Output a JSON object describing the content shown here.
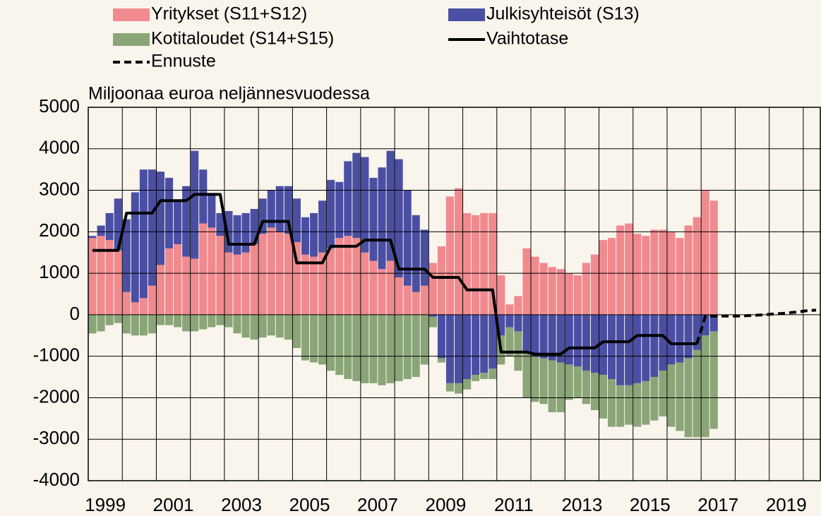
{
  "chart_data": {
    "type": "bar",
    "subtitle": "Miljoonaa euroa neljännesvuodessa",
    "stacked": true,
    "grid": true,
    "categories": [
      "1999",
      null,
      null,
      null,
      null,
      null,
      null,
      null,
      "2001",
      null,
      null,
      null,
      null,
      null,
      null,
      null,
      "2003",
      null,
      null,
      null,
      null,
      null,
      null,
      null,
      "2005",
      null,
      null,
      null,
      null,
      null,
      null,
      null,
      "2007",
      null,
      null,
      null,
      null,
      null,
      null,
      null,
      "2009",
      null,
      null,
      null,
      null,
      null,
      null,
      null,
      "2011",
      null,
      null,
      null,
      null,
      null,
      null,
      null,
      "2013",
      null,
      null,
      null,
      null,
      null,
      null,
      null,
      "2015",
      null,
      null,
      null,
      null,
      null,
      null,
      null,
      "2017",
      null,
      null,
      null,
      null,
      null,
      null,
      null,
      "2019",
      null,
      null,
      null,
      null,
      null
    ],
    "ylim": [
      -4000,
      5000
    ],
    "yticks": [
      -4000,
      -3000,
      -2000,
      -1000,
      0,
      1000,
      2000,
      3000,
      4000,
      5000
    ],
    "series": [
      {
        "name": "Yritykset (S11+S12)",
        "kind": "bar",
        "color": "#f08a8f",
        "values": [
          1850,
          1900,
          1800,
          1550,
          550,
          300,
          400,
          700,
          1200,
          1600,
          1700,
          1400,
          1350,
          2200,
          2100,
          1900,
          1500,
          1450,
          1500,
          1700,
          1950,
          2100,
          2000,
          1950,
          1750,
          1450,
          1400,
          1500,
          1600,
          1850,
          1900,
          1850,
          1500,
          1300,
          1100,
          1300,
          900,
          700,
          550,
          700,
          1250,
          1650,
          2850,
          3050,
          2450,
          2400,
          2450,
          2450,
          950,
          250,
          450,
          1600,
          1400,
          1250,
          1150,
          1100,
          1000,
          950,
          1250,
          1450,
          1800,
          1850,
          2150,
          2200,
          1950,
          1900,
          2050,
          2050,
          2000,
          1850,
          2150,
          2350,
          3000,
          2750,
          null,
          null,
          null,
          null,
          null,
          null,
          null,
          null,
          null,
          null,
          null,
          null
        ]
      },
      {
        "name": "Julkisyhteisöt (S13)",
        "kind": "bar",
        "color": "#4a4fa3",
        "values": [
          50,
          250,
          650,
          1250,
          1750,
          2650,
          3100,
          2800,
          2250,
          1700,
          1050,
          1700,
          2600,
          1300,
          800,
          550,
          1000,
          950,
          950,
          850,
          850,
          900,
          1100,
          1150,
          1050,
          900,
          1050,
          1250,
          1650,
          1350,
          1800,
          2050,
          2300,
          2000,
          2450,
          2650,
          2850,
          2300,
          1850,
          1350,
          -50,
          -1050,
          -1650,
          -1650,
          -1550,
          -1450,
          -1400,
          -1300,
          -500,
          -300,
          -400,
          -900,
          -1000,
          -1050,
          -1100,
          -1150,
          -1200,
          -1250,
          -1350,
          -1400,
          -1450,
          -1550,
          -1700,
          -1700,
          -1650,
          -1600,
          -1500,
          -1350,
          -1200,
          -1150,
          -1050,
          -850,
          -500,
          -400,
          null,
          null,
          null,
          null,
          null,
          null,
          null,
          null,
          null,
          null,
          null,
          null
        ]
      },
      {
        "name": "Kotitaloudet (S14+S15)",
        "kind": "bar",
        "color": "#8aa577",
        "values": [
          -450,
          -400,
          -250,
          -200,
          -450,
          -500,
          -500,
          -450,
          -250,
          -250,
          -300,
          -400,
          -400,
          -350,
          -300,
          -250,
          -300,
          -450,
          -550,
          -600,
          -550,
          -500,
          -550,
          -600,
          -800,
          -1100,
          -1150,
          -1200,
          -1350,
          -1450,
          -1550,
          -1600,
          -1650,
          -1650,
          -1700,
          -1650,
          -1600,
          -1550,
          -1500,
          -1200,
          -250,
          -100,
          -200,
          -250,
          -250,
          -150,
          -150,
          -250,
          -700,
          -700,
          -950,
          -1100,
          -1100,
          -1100,
          -1250,
          -1200,
          -850,
          -750,
          -800,
          -900,
          -1050,
          -1150,
          -1000,
          -950,
          -1050,
          -1050,
          -1050,
          -1100,
          -1500,
          -1650,
          -1900,
          -2100,
          -2450,
          -2350,
          null,
          null,
          null,
          null,
          null,
          null,
          null,
          null,
          null,
          null,
          null,
          null
        ]
      },
      {
        "name": "Vaihtotase",
        "kind": "line",
        "style": "solid",
        "color": "#000000",
        "values": [
          1550,
          1550,
          1550,
          1550,
          2450,
          2450,
          2450,
          2450,
          2750,
          2750,
          2750,
          2750,
          2900,
          2900,
          2900,
          2900,
          1700,
          1700,
          1700,
          1700,
          2250,
          2250,
          2250,
          2250,
          1250,
          1250,
          1250,
          1250,
          1650,
          1650,
          1650,
          1650,
          1800,
          1800,
          1800,
          1800,
          1100,
          1100,
          1100,
          1100,
          900,
          900,
          900,
          900,
          600,
          600,
          600,
          600,
          -900,
          -900,
          -900,
          -900,
          -950,
          -950,
          -950,
          -950,
          -800,
          -800,
          -800,
          -800,
          -650,
          -650,
          -650,
          -650,
          -500,
          -500,
          -500,
          -500,
          -700,
          -700,
          -700,
          -700,
          null,
          null,
          null,
          null,
          null,
          null,
          null,
          null,
          null,
          null,
          null,
          null,
          null,
          null
        ]
      },
      {
        "name": "Ennuste",
        "kind": "line",
        "style": "dashed",
        "color": "#000000",
        "values": [
          null,
          null,
          null,
          null,
          null,
          null,
          null,
          null,
          null,
          null,
          null,
          null,
          null,
          null,
          null,
          null,
          null,
          null,
          null,
          null,
          null,
          null,
          null,
          null,
          null,
          null,
          null,
          null,
          null,
          null,
          null,
          null,
          null,
          null,
          null,
          null,
          null,
          null,
          null,
          null,
          null,
          null,
          null,
          null,
          null,
          null,
          null,
          null,
          null,
          null,
          null,
          null,
          null,
          null,
          null,
          null,
          null,
          null,
          null,
          null,
          null,
          null,
          null,
          null,
          null,
          null,
          null,
          null,
          null,
          null,
          null,
          -700,
          -30,
          -30,
          -30,
          -30,
          -30,
          -20,
          -10,
          0,
          20,
          30,
          50,
          70,
          100,
          110
        ]
      }
    ]
  }
}
